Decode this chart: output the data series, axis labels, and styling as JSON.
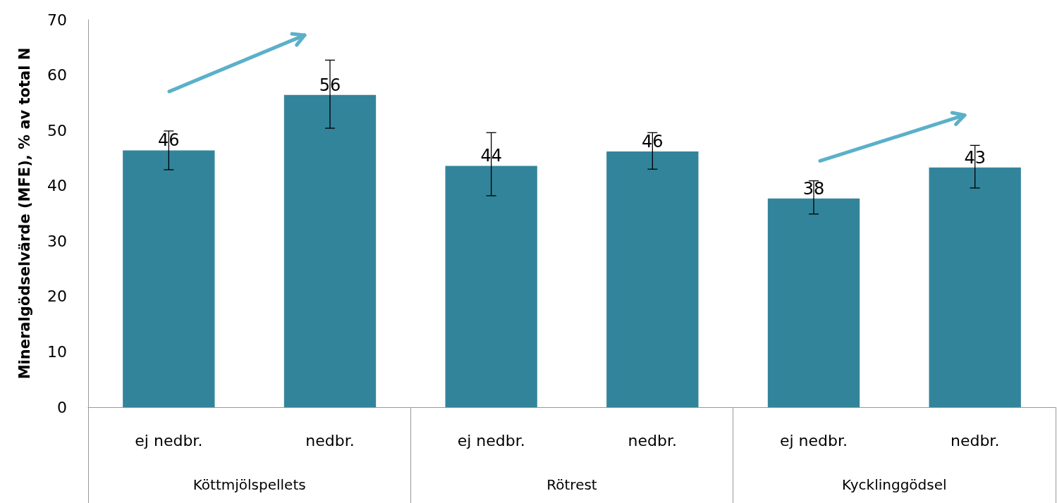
{
  "chart_data": {
    "type": "bar",
    "ylabel": "Mineralgödselvärde (MFE), % av total N",
    "categories": [
      "ej nedbr.",
      "nedbr.",
      "ej nedbr.",
      "nedbr.",
      "ej nedbr.",
      "nedbr."
    ],
    "values": [
      46.4,
      56.4,
      43.6,
      46.2,
      37.7,
      43.3
    ],
    "value_labels": [
      "46",
      "56",
      "44",
      "46",
      "38",
      "43"
    ],
    "errors": [
      [
        42.9,
        49.9
      ],
      [
        50.4,
        62.7
      ],
      [
        38.2,
        49.6
      ],
      [
        43.0,
        49.6
      ],
      [
        34.9,
        40.9
      ],
      [
        39.6,
        47.3
      ]
    ],
    "color": "#32849b",
    "annotations": [
      "Köttmjölspellets",
      "Rötrest",
      "Kycklinggödsel"
    ],
    "ylim": [
      0,
      70
    ],
    "yticks": [
      0,
      10,
      20,
      30,
      40,
      50,
      60,
      70
    ],
    "grid": false
  }
}
